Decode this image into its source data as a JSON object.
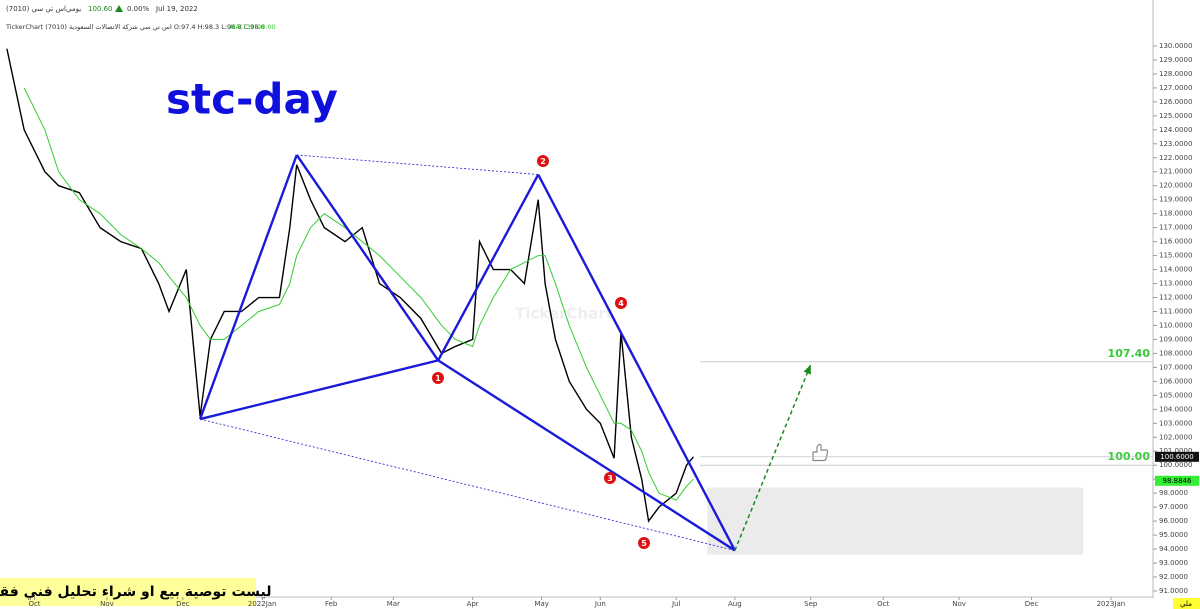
{
  "header": {
    "symbol": "اس تي سي (7010)",
    "period": "يومي",
    "price": "100.60",
    "change": "0.00%",
    "date": "Jul 19, 2022",
    "info": "TickerChart اس تي سي شركة الاتصالات السعودية (7010) O:97.4 H:98.3 L:96.8 C:98.0",
    "ma_label": "MA(13)",
    "ma_value": "98.00"
  },
  "disclaimer": "ليست توصية بيع او شراء تحليل فني فقط",
  "corner_tag": "ملي",
  "watermark": "TickerChart",
  "chart_data": {
    "type": "line",
    "title": "stc-day",
    "x": [
      2,
      7,
      13,
      17,
      23,
      29,
      35,
      41,
      46,
      49,
      54,
      58,
      61,
      65,
      70,
      75,
      81,
      84,
      86,
      90,
      94,
      100,
      105,
      110,
      116,
      122,
      128,
      132,
      137,
      139,
      143,
      148,
      152,
      156,
      158,
      161,
      165,
      170,
      174,
      178,
      180,
      183,
      186,
      188,
      191,
      196,
      199,
      201
    ],
    "series": [
      {
        "color": "#000000",
        "values": [
          129.8,
          124,
          121,
          120,
          119.5,
          117,
          116,
          115.5,
          113,
          111,
          114,
          103.5,
          109,
          111,
          111,
          112,
          112,
          117,
          121.5,
          119,
          117,
          116,
          117,
          113,
          112,
          110.5,
          108,
          108.5,
          109,
          116,
          114,
          114,
          113,
          119,
          113,
          109,
          106,
          104,
          103,
          100.5,
          109.5,
          102,
          99,
          96,
          97,
          98,
          100,
          100.6
        ]
      },
      {
        "name": "MA(13)",
        "color": "#33cc33",
        "values": [
          null,
          127,
          124,
          121,
          119,
          118,
          116.5,
          115.5,
          114.5,
          113.5,
          112,
          110,
          109,
          109,
          110,
          111,
          111.5,
          113,
          115,
          117,
          118,
          117,
          116,
          115,
          113.5,
          112,
          110,
          109,
          108.5,
          110,
          112,
          114,
          114.5,
          115,
          115,
          113,
          110,
          107,
          105,
          103,
          103,
          102.5,
          101,
          99.5,
          98,
          97.5,
          98.5,
          99
        ]
      }
    ],
    "pattern": {
      "color": "#1a1adb",
      "x": [
        58,
        86,
        127,
        156,
        213
      ],
      "values": [
        103.3,
        122.2,
        107.5,
        120.8,
        93.9
      ]
    },
    "point_labels": [
      "1",
      "2",
      "3",
      "4",
      "5"
    ],
    "projection": {
      "color": "#1a8a1a",
      "x": [
        213,
        235
      ],
      "values": [
        93.9,
        107.2
      ]
    },
    "zone": {
      "x": [
        205,
        314
      ],
      "values": [
        93.6,
        98.4
      ]
    },
    "levels": [
      {
        "value": 107.4,
        "label": "107.40"
      },
      {
        "value": 100,
        "label": "100.00"
      }
    ],
    "last_price": {
      "value": 100.6,
      "label": "100.6000"
    },
    "ma_badge": {
      "value": 98.8846,
      "label": "98.8846"
    },
    "xlim": [
      0,
      340
    ],
    "ylim": [
      89.71,
      133.29
    ],
    "xticks": [
      {
        "value": 10,
        "label": "Oct"
      },
      {
        "value": 31,
        "label": "Nov"
      },
      {
        "value": 53,
        "label": "Dec"
      },
      {
        "value": 76,
        "label": "2022Jan"
      },
      {
        "value": 96,
        "label": "Feb"
      },
      {
        "value": 114,
        "label": "Mar"
      },
      {
        "value": 137,
        "label": "Apr"
      },
      {
        "value": 157,
        "label": "May"
      },
      {
        "value": 174,
        "label": "Jun"
      },
      {
        "value": 196,
        "label": "Jul"
      },
      {
        "value": 213,
        "label": "Aug"
      },
      {
        "value": 235,
        "label": "Sep"
      },
      {
        "value": 256,
        "label": "Oct"
      },
      {
        "value": 278,
        "label": "Nov"
      },
      {
        "value": 299,
        "label": "Dec"
      },
      {
        "value": 322,
        "label": "2023Jan"
      }
    ],
    "yticks": [
      {
        "value": 91,
        "label": "91.0000"
      },
      {
        "value": 92,
        "label": "92.0000"
      },
      {
        "value": 93,
        "label": "93.0000"
      },
      {
        "value": 94,
        "label": "94.0000"
      },
      {
        "value": 95,
        "label": "95.0000"
      },
      {
        "value": 96,
        "label": "96.0000"
      },
      {
        "value": 97,
        "label": "97.0000"
      },
      {
        "value": 98,
        "label": "98.0000"
      },
      {
        "value": 99,
        "label": "99.0000"
      },
      {
        "value": 100,
        "label": "100.0000"
      },
      {
        "value": 101,
        "label": "101.0000"
      },
      {
        "value": 102,
        "label": "102.0000"
      },
      {
        "value": 103,
        "label": "103.0000"
      },
      {
        "value": 104,
        "label": "104.0000"
      },
      {
        "value": 105,
        "label": "105.0000"
      },
      {
        "value": 106,
        "label": "106.0000"
      },
      {
        "value": 107,
        "label": "107.0000"
      },
      {
        "value": 108,
        "label": "108.0000"
      },
      {
        "value": 109,
        "label": "109.0000"
      },
      {
        "value": 110,
        "label": "110.0000"
      },
      {
        "value": 111,
        "label": "111.0000"
      },
      {
        "value": 112,
        "label": "112.0000"
      },
      {
        "value": 113,
        "label": "113.0000"
      },
      {
        "value": 114,
        "label": "114.0000"
      },
      {
        "value": 115,
        "label": "115.0000"
      },
      {
        "value": 116,
        "label": "116.0000"
      },
      {
        "value": 117,
        "label": "117.0000"
      },
      {
        "value": 118,
        "label": "118.0000"
      },
      {
        "value": 119,
        "label": "119.0000"
      },
      {
        "value": 120,
        "label": "120.0000"
      },
      {
        "value": 121,
        "label": "121.0000"
      },
      {
        "value": 122,
        "label": "122.0000"
      },
      {
        "value": 123,
        "label": "123.0000"
      },
      {
        "value": 124,
        "label": "124.0000"
      },
      {
        "value": 125,
        "label": "125.0000"
      },
      {
        "value": 126,
        "label": "126.0000"
      },
      {
        "value": 127,
        "label": "127.0000"
      },
      {
        "value": 128,
        "label": "128.0000"
      },
      {
        "value": 129,
        "label": "129.0000"
      },
      {
        "value": 130,
        "label": "130.0000"
      }
    ]
  }
}
